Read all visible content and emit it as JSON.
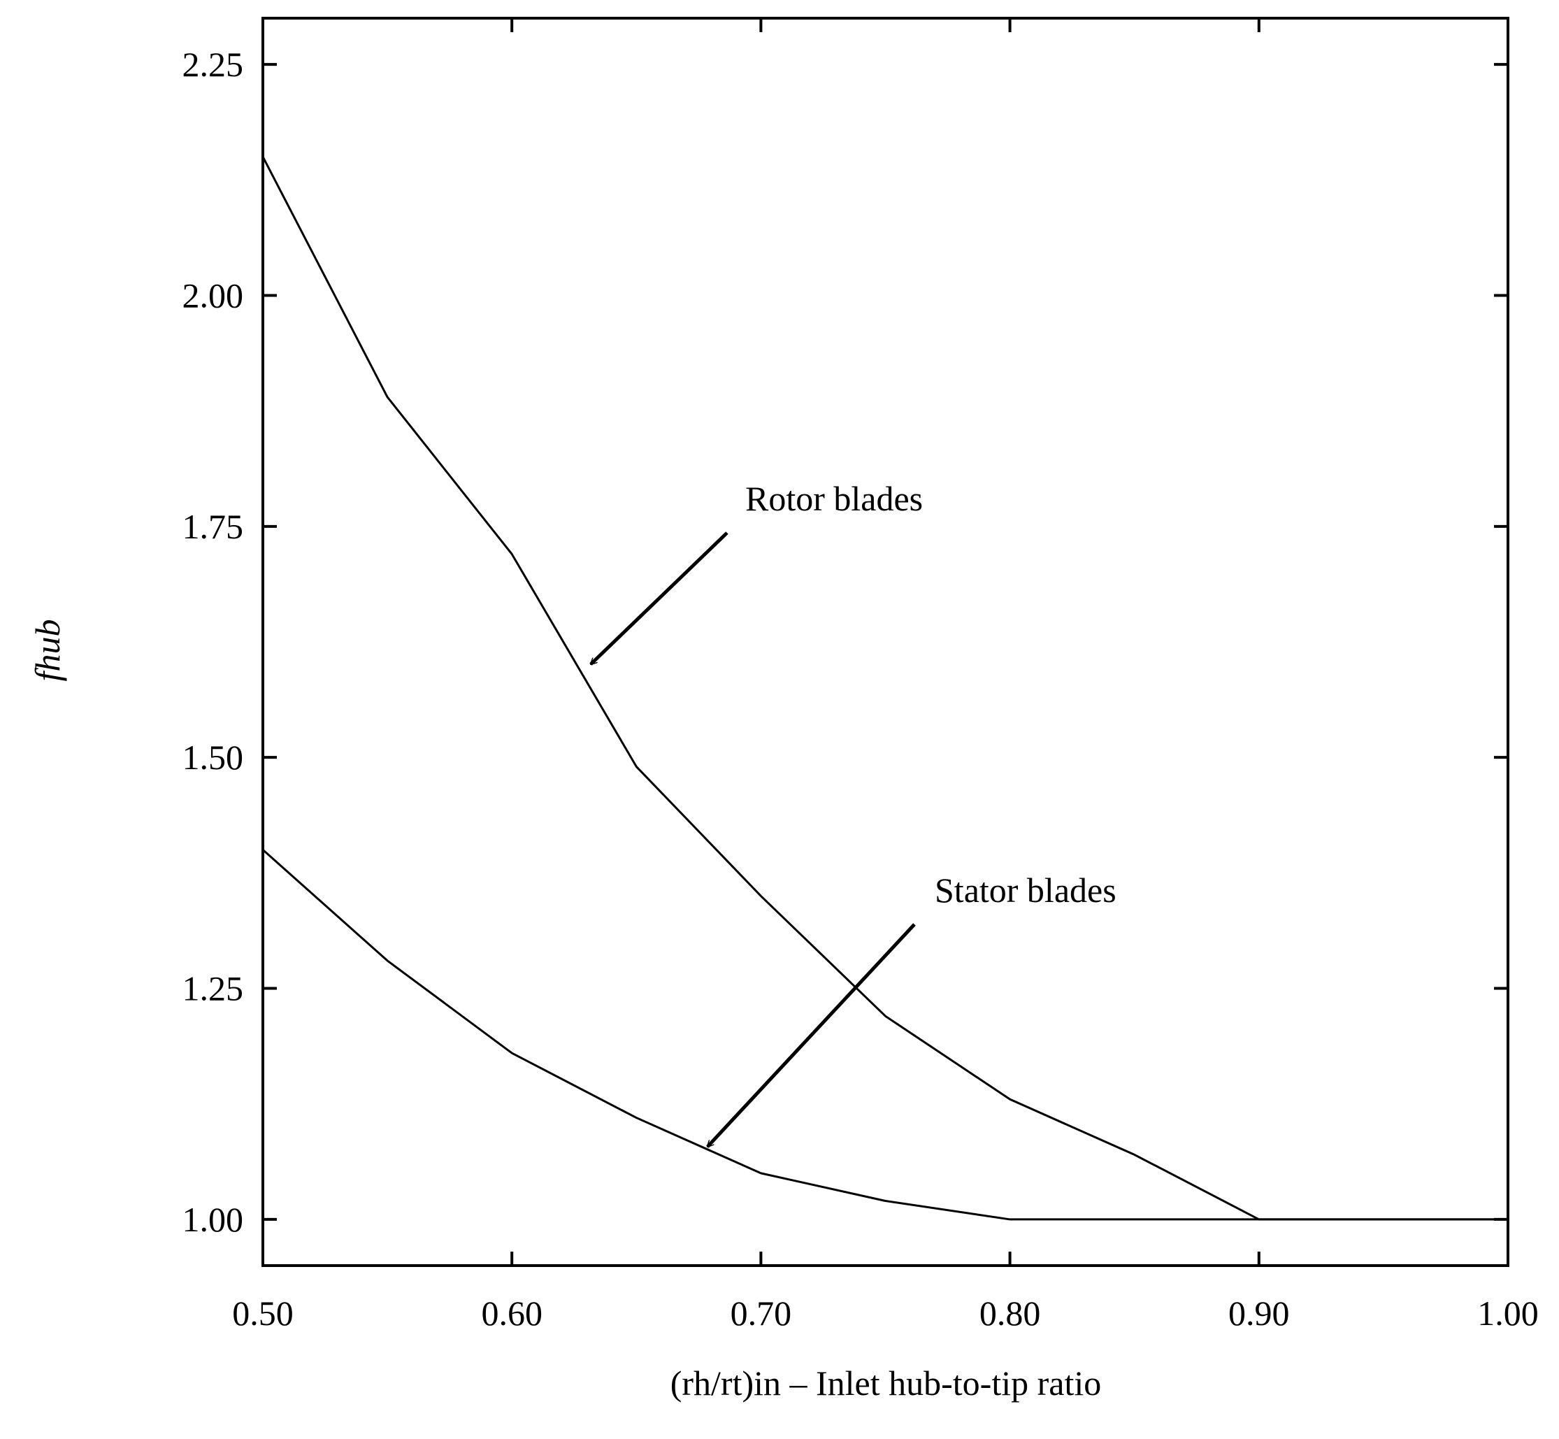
{
  "chart_data": {
    "type": "line",
    "xlabel": "(rh/rt)in – Inlet hub-to-tip ratio",
    "ylabel": "fhub",
    "xlim": [
      0.5,
      1.0
    ],
    "ylim": [
      0.95,
      2.3
    ],
    "xticks": [
      {
        "value": 0.5,
        "label": "0.50"
      },
      {
        "value": 0.6,
        "label": "0.60"
      },
      {
        "value": 0.7,
        "label": "0.70"
      },
      {
        "value": 0.8,
        "label": "0.80"
      },
      {
        "value": 0.9,
        "label": "0.90"
      },
      {
        "value": 1.0,
        "label": "1.00"
      }
    ],
    "yticks": [
      {
        "value": 1.0,
        "label": "1.00"
      },
      1.25,
      {
        "value": 1.5,
        "label": "1.50"
      },
      1.75,
      {
        "value": 2.0,
        "label": "2.00"
      },
      2.25
    ],
    "grid": false,
    "x": [
      0.5,
      0.55,
      0.6,
      0.65,
      0.7,
      0.75,
      0.8,
      0.85,
      0.9,
      0.95,
      1.0
    ],
    "series": [
      {
        "name": "Rotor blades",
        "color": "#000000",
        "values": [
          2.15,
          1.89,
          1.72,
          1.49,
          1.35,
          1.22,
          1.13,
          1.07,
          1.0,
          1.0,
          1.0
        ]
      },
      {
        "name": "Stator blades",
        "color": "#000000",
        "values": [
          1.4,
          1.28,
          1.18,
          1.11,
          1.05,
          1.02,
          1.0,
          1.0,
          1.0,
          1.0,
          1.0
        ]
      }
    ]
  }
}
